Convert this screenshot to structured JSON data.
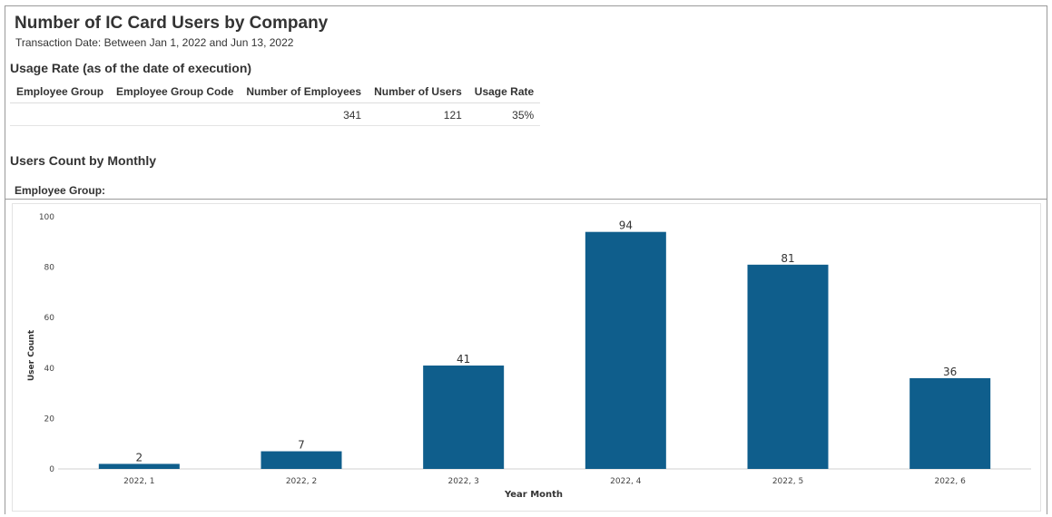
{
  "report": {
    "title": "Number of IC Card Users by Company",
    "subtitle": "Transaction Date: Between Jan 1, 2022 and Jun 13, 2022"
  },
  "usage_rate": {
    "heading": "Usage Rate (as of the date of execution)",
    "columns": [
      "Employee Group",
      "Employee Group Code",
      "Number of Employees",
      "Number of Users",
      "Usage Rate"
    ],
    "rows": [
      [
        "",
        "",
        "341",
        "121",
        "35%"
      ]
    ]
  },
  "monthly": {
    "heading": "Users Count by Monthly",
    "filter_label": "Employee Group:"
  },
  "chart_data": {
    "type": "bar",
    "categories": [
      "2022, 1",
      "2022, 2",
      "2022, 3",
      "2022, 4",
      "2022, 5",
      "2022, 6"
    ],
    "values": [
      2,
      7,
      41,
      94,
      81,
      36
    ],
    "xlabel": "Year Month",
    "ylabel": "User Count",
    "ylim": [
      0,
      100
    ],
    "yticks": [
      0,
      20,
      40,
      60,
      80,
      100
    ],
    "bar_color": "#0f5e8c",
    "grid": false,
    "data_labels": true
  }
}
